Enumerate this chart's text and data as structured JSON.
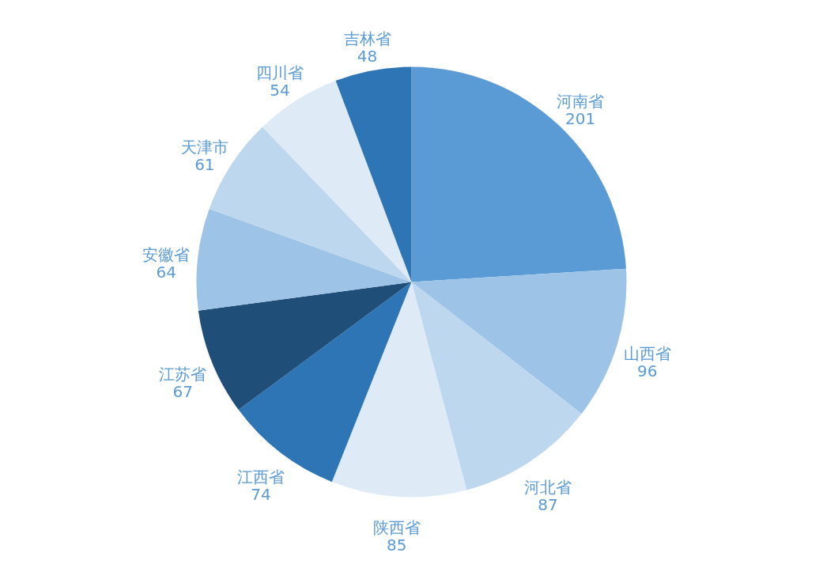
{
  "chart_data": {
    "type": "pie",
    "categories": [
      "河南省",
      "山西省",
      "河北省",
      "陕西省",
      "江西省",
      "江苏省",
      "安徽省",
      "天津市",
      "四川省",
      "吉林省"
    ],
    "values": [
      201,
      96,
      87,
      85,
      74,
      67,
      64,
      61,
      54,
      48
    ],
    "colors": [
      "#5b9bd5",
      "#9dc3e6",
      "#bdd7ee",
      "#deebf7",
      "#2e75b6",
      "#1f4e79",
      "#9dc3e6",
      "#bdd7ee",
      "#deebf7",
      "#2e75b6"
    ],
    "data_labels": true
  }
}
